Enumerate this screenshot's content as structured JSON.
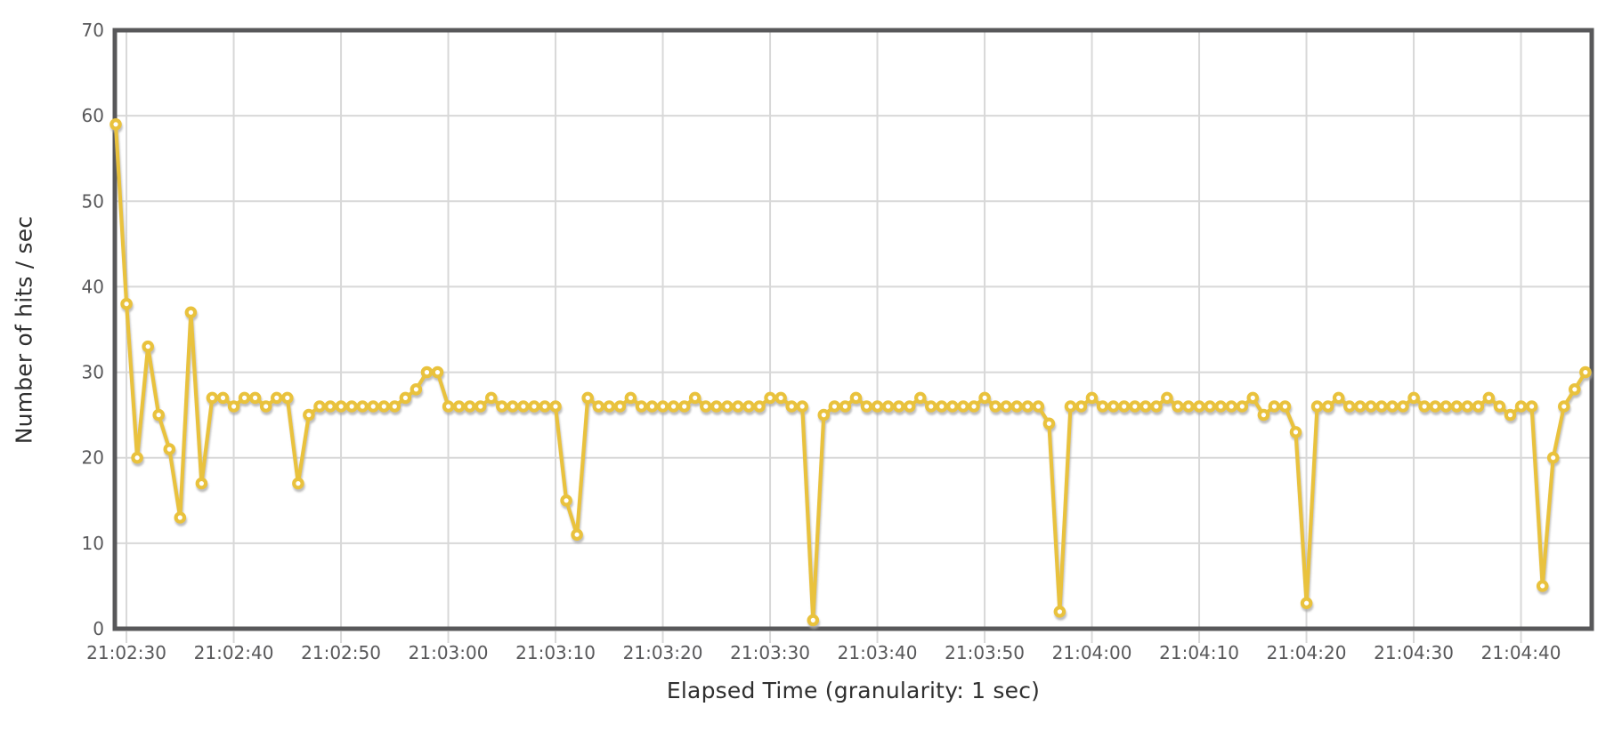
{
  "chart_data": {
    "type": "line",
    "title": "",
    "xlabel": "Elapsed Time (granularity: 1 sec)",
    "ylabel": "Number of hits / sec",
    "ylim": [
      0,
      70
    ],
    "y_ticks": [
      0,
      10,
      20,
      30,
      40,
      50,
      60,
      70
    ],
    "x_ticks": [
      "21:02:30",
      "21:02:40",
      "21:02:50",
      "21:03:00",
      "21:03:10",
      "21:03:20",
      "21:03:30",
      "21:03:40",
      "21:03:50",
      "21:04:00",
      "21:04:10",
      "21:04:20",
      "21:04:30",
      "21:04:40"
    ],
    "grid": true,
    "legend_position": "none",
    "colors": {
      "line": "#e9c23d",
      "marker_fill": "#ffffff",
      "grid": "#d8d8d8",
      "axis_border": "#58585a",
      "tick_text": "#58585a",
      "title_text": "#2f2f2f",
      "background": "#ffffff",
      "shadow": "#a8a8a8"
    },
    "series": [
      {
        "name": "Number of hits / sec",
        "interval_sec": 1,
        "x": [
          "21:02:29",
          "21:02:30",
          "21:02:31",
          "21:02:32",
          "21:02:33",
          "21:02:34",
          "21:02:35",
          "21:02:36",
          "21:02:37",
          "21:02:38",
          "21:02:39",
          "21:02:40",
          "21:02:41",
          "21:02:42",
          "21:02:43",
          "21:02:44",
          "21:02:45",
          "21:02:46",
          "21:02:47",
          "21:02:48",
          "21:02:49",
          "21:02:50",
          "21:02:51",
          "21:02:52",
          "21:02:53",
          "21:02:54",
          "21:02:55",
          "21:02:56",
          "21:02:57",
          "21:02:58",
          "21:02:59",
          "21:03:00",
          "21:03:01",
          "21:03:02",
          "21:03:03",
          "21:03:04",
          "21:03:05",
          "21:03:06",
          "21:03:07",
          "21:03:08",
          "21:03:09",
          "21:03:10",
          "21:03:11",
          "21:03:12",
          "21:03:13",
          "21:03:14",
          "21:03:15",
          "21:03:16",
          "21:03:17",
          "21:03:18",
          "21:03:19",
          "21:03:20",
          "21:03:21",
          "21:03:22",
          "21:03:23",
          "21:03:24",
          "21:03:25",
          "21:03:26",
          "21:03:27",
          "21:03:28",
          "21:03:29",
          "21:03:30",
          "21:03:31",
          "21:03:32",
          "21:03:33",
          "21:03:34",
          "21:03:35",
          "21:03:36",
          "21:03:37",
          "21:03:38",
          "21:03:39",
          "21:03:40",
          "21:03:41",
          "21:03:42",
          "21:03:43",
          "21:03:44",
          "21:03:45",
          "21:03:46",
          "21:03:47",
          "21:03:48",
          "21:03:49",
          "21:03:50",
          "21:03:51",
          "21:03:52",
          "21:03:53",
          "21:03:54",
          "21:03:55",
          "21:03:56",
          "21:03:57",
          "21:03:58",
          "21:03:59",
          "21:04:00",
          "21:04:01",
          "21:04:02",
          "21:04:03",
          "21:04:04",
          "21:04:05",
          "21:04:06",
          "21:04:07",
          "21:04:08",
          "21:04:09",
          "21:04:10",
          "21:04:11",
          "21:04:12",
          "21:04:13",
          "21:04:14",
          "21:04:15",
          "21:04:16",
          "21:04:17",
          "21:04:18",
          "21:04:19",
          "21:04:20",
          "21:04:21",
          "21:04:22",
          "21:04:23",
          "21:04:24",
          "21:04:25",
          "21:04:26",
          "21:04:27",
          "21:04:28",
          "21:04:29",
          "21:04:30",
          "21:04:31",
          "21:04:32",
          "21:04:33",
          "21:04:34",
          "21:04:35",
          "21:04:36",
          "21:04:37",
          "21:04:38",
          "21:04:39",
          "21:04:40",
          "21:04:41",
          "21:04:42",
          "21:04:43",
          "21:04:44",
          "21:04:45",
          "21:04:46"
        ],
        "values": [
          59,
          38,
          20,
          33,
          25,
          21,
          13,
          37,
          17,
          27,
          27,
          26,
          27,
          27,
          26,
          27,
          27,
          17,
          25,
          26,
          26,
          26,
          26,
          26,
          26,
          26,
          26,
          27,
          28,
          30,
          30,
          26,
          26,
          26,
          26,
          27,
          26,
          26,
          26,
          26,
          26,
          26,
          15,
          11,
          27,
          26,
          26,
          26,
          27,
          26,
          26,
          26,
          26,
          26,
          27,
          26,
          26,
          26,
          26,
          26,
          26,
          27,
          27,
          26,
          26,
          1,
          25,
          26,
          26,
          27,
          26,
          26,
          26,
          26,
          26,
          27,
          26,
          26,
          26,
          26,
          26,
          27,
          26,
          26,
          26,
          26,
          26,
          24,
          2,
          26,
          26,
          27,
          26,
          26,
          26,
          26,
          26,
          26,
          27,
          26,
          26,
          26,
          26,
          26,
          26,
          26,
          27,
          25,
          26,
          26,
          23,
          3,
          26,
          26,
          27,
          26,
          26,
          26,
          26,
          26,
          26,
          27,
          26,
          26,
          26,
          26,
          26,
          26,
          27,
          26,
          25,
          26,
          26,
          5,
          20,
          26,
          28,
          30
        ]
      }
    ]
  }
}
